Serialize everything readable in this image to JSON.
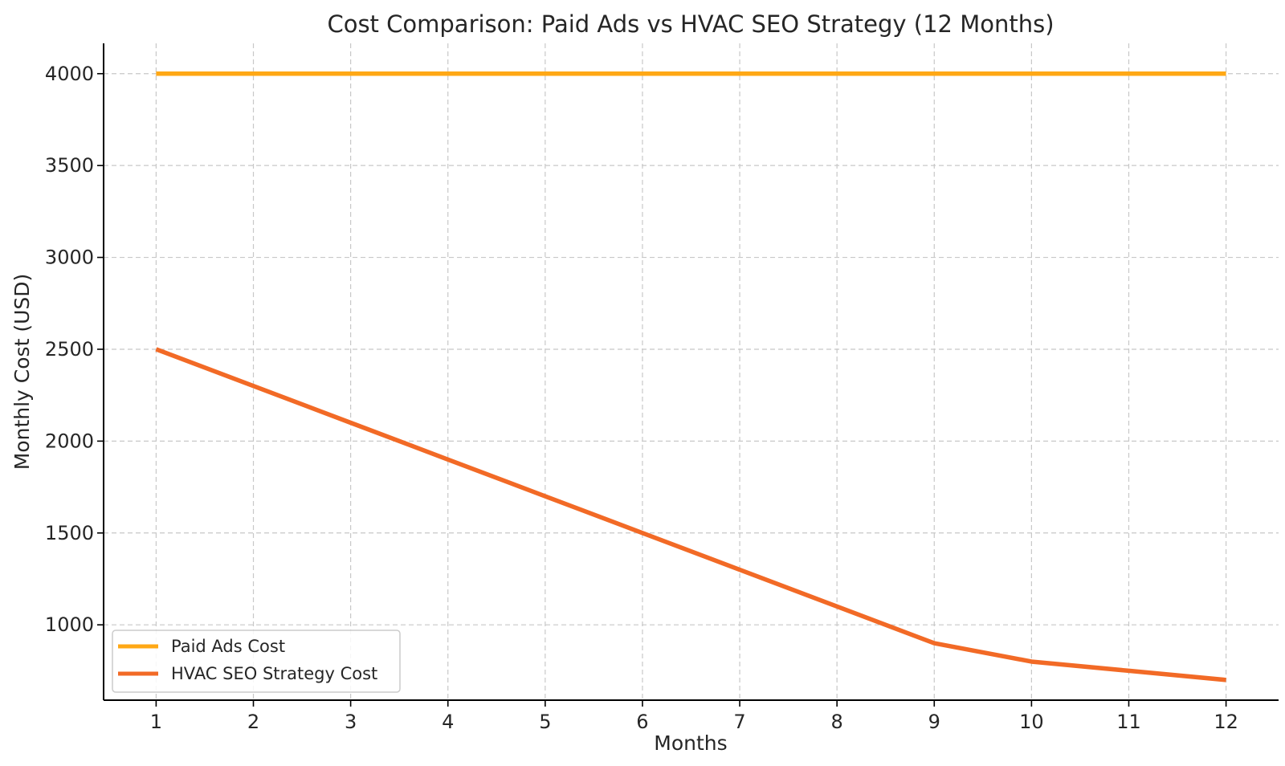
{
  "chart_data": {
    "type": "line",
    "title": "Cost Comparison: Paid Ads vs HVAC SEO Strategy (12 Months)",
    "xlabel": "Months",
    "ylabel": "Monthly Cost (USD)",
    "x": [
      1,
      2,
      3,
      4,
      5,
      6,
      7,
      8,
      9,
      10,
      11,
      12
    ],
    "xlim": [
      0.46,
      12.54
    ],
    "ylim": [
      590,
      4165
    ],
    "yticks": [
      1000,
      1500,
      2000,
      2500,
      3000,
      3500,
      4000
    ],
    "xticks": [
      1,
      2,
      3,
      4,
      5,
      6,
      7,
      8,
      9,
      10,
      11,
      12
    ],
    "grid": true,
    "legend_position": "lower-left",
    "series": [
      {
        "name": "Paid Ads Cost",
        "color": "#FFA815",
        "values": [
          4000,
          4000,
          4000,
          4000,
          4000,
          4000,
          4000,
          4000,
          4000,
          4000,
          4000,
          4000
        ]
      },
      {
        "name": "HVAC SEO Strategy Cost",
        "color": "#F26A26",
        "values": [
          2500,
          2300,
          2100,
          1900,
          1700,
          1500,
          1300,
          1100,
          900,
          800,
          750,
          700
        ]
      }
    ]
  }
}
